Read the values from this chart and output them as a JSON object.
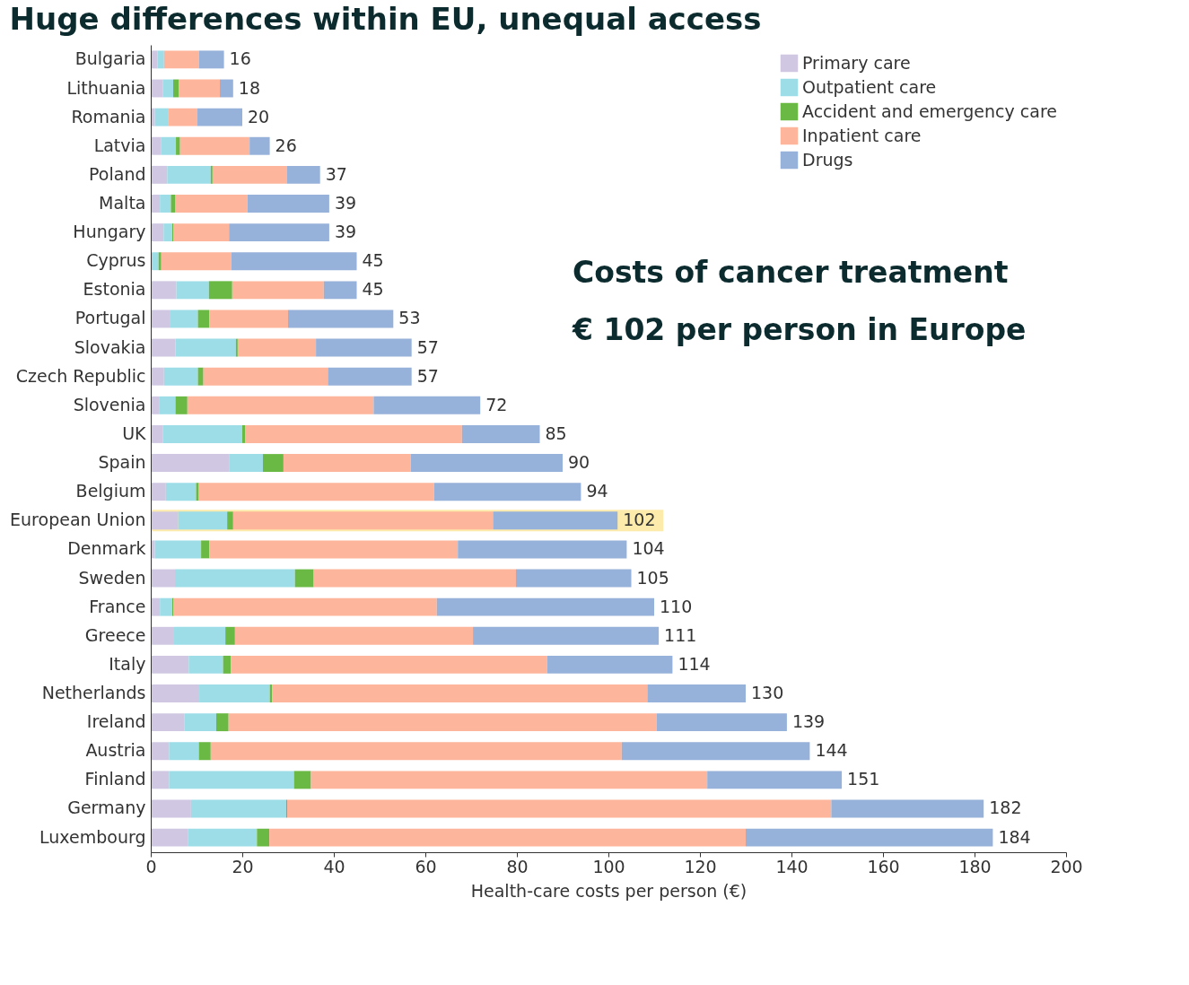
{
  "chart_data": {
    "type": "bar",
    "orientation": "horizontal",
    "stacked": true,
    "title": "Huge differences within EU, unequal access",
    "xlabel": "Health-care costs per person (€)",
    "categories": [
      "Bulgaria",
      "Lithuania",
      "Romania",
      "Latvia",
      "Poland",
      "Malta",
      "Hungary",
      "Cyprus",
      "Estonia",
      "Portugal",
      "Slovakia",
      "Czech Republic",
      "Slovenia",
      "UK",
      "Spain",
      "Belgium",
      "European Union",
      "Denmark",
      "Sweden",
      "France",
      "Greece",
      "Italy",
      "Netherlands",
      "Ireland",
      "Austria",
      "Finland",
      "Germany",
      "Luxembourg"
    ],
    "series": [
      {
        "name": "Primary care",
        "color": "#d0c8e2",
        "values": [
          1.5,
          2.6,
          0.9,
          2.2,
          3.6,
          2.0,
          2.8,
          null,
          5.6,
          4.3,
          5.4,
          2.9,
          1.8,
          2.7,
          17.1,
          3.3,
          6.0,
          0.9,
          5.3,
          2.0,
          5.1,
          8.3,
          10.6,
          7.4,
          4.0,
          4.0,
          8.8,
          8.2
        ]
      },
      {
        "name": "Outpatient care",
        "color": "#9cdde8",
        "values": [
          1.4,
          2.3,
          3.0,
          3.3,
          9.5,
          2.4,
          1.9,
          1.7,
          7.1,
          6.0,
          13.2,
          7.4,
          3.6,
          17.3,
          7.4,
          6.6,
          10.7,
          10.1,
          26.2,
          2.7,
          11.2,
          7.5,
          15.4,
          6.9,
          6.5,
          27.3,
          20.8,
          15.0
        ]
      },
      {
        "name": "Accident and emergency care",
        "color": "#6ab944",
        "values": [
          null,
          1.2,
          0,
          0.9,
          0.4,
          1.0,
          0.3,
          0.6,
          5.1,
          2.5,
          0.4,
          1.2,
          2.6,
          0.6,
          4.5,
          0.6,
          1.3,
          1.8,
          4.1,
          0.3,
          2.1,
          1.7,
          0.5,
          2.7,
          2.6,
          3.7,
          0.2,
          2.7
        ]
      },
      {
        "name": "Inpatient care",
        "color": "#fdb59b",
        "values": [
          7.6,
          9.0,
          6.3,
          15.2,
          16.2,
          15.7,
          12.1,
          15.3,
          20.0,
          17.2,
          17.1,
          27.2,
          40.7,
          47.4,
          27.8,
          51.4,
          56.8,
          54.3,
          44.2,
          57.5,
          52.0,
          69.1,
          82.0,
          93.5,
          89.8,
          86.6,
          118.9,
          104.1
        ]
      },
      {
        "name": "Drugs",
        "color": "#97b2da",
        "values": [
          5.5,
          2.9,
          9.8,
          4.4,
          7.3,
          17.9,
          21.9,
          27.4,
          7.2,
          23.0,
          20.9,
          18.3,
          23.3,
          17.0,
          33.2,
          32.1,
          27.2,
          36.9,
          25.2,
          47.5,
          40.6,
          27.4,
          21.5,
          28.5,
          41.1,
          29.4,
          33.3,
          54.0
        ]
      }
    ],
    "totals": [
      "16",
      "18",
      "20",
      "26",
      "37",
      "39",
      "39",
      "45",
      "45",
      "53",
      "57",
      "57",
      "72",
      "85",
      "90",
      "94",
      "102",
      "104",
      "105",
      "110",
      "111",
      "114",
      "130",
      "139",
      "144",
      "151",
      "182",
      "184"
    ],
    "xlim": [
      0,
      200
    ],
    "xticks": [
      0,
      20,
      40,
      60,
      80,
      100,
      120,
      140,
      160,
      180,
      200
    ],
    "bands": [
      {
        "axis": "y",
        "from": "European Union",
        "to": "European Union",
        "color": "#fde89c"
      }
    ],
    "annotations": [
      "Costs of cancer treatment",
      "€ 102 per person in Europe"
    ],
    "legend": "top right",
    "grid": false
  }
}
